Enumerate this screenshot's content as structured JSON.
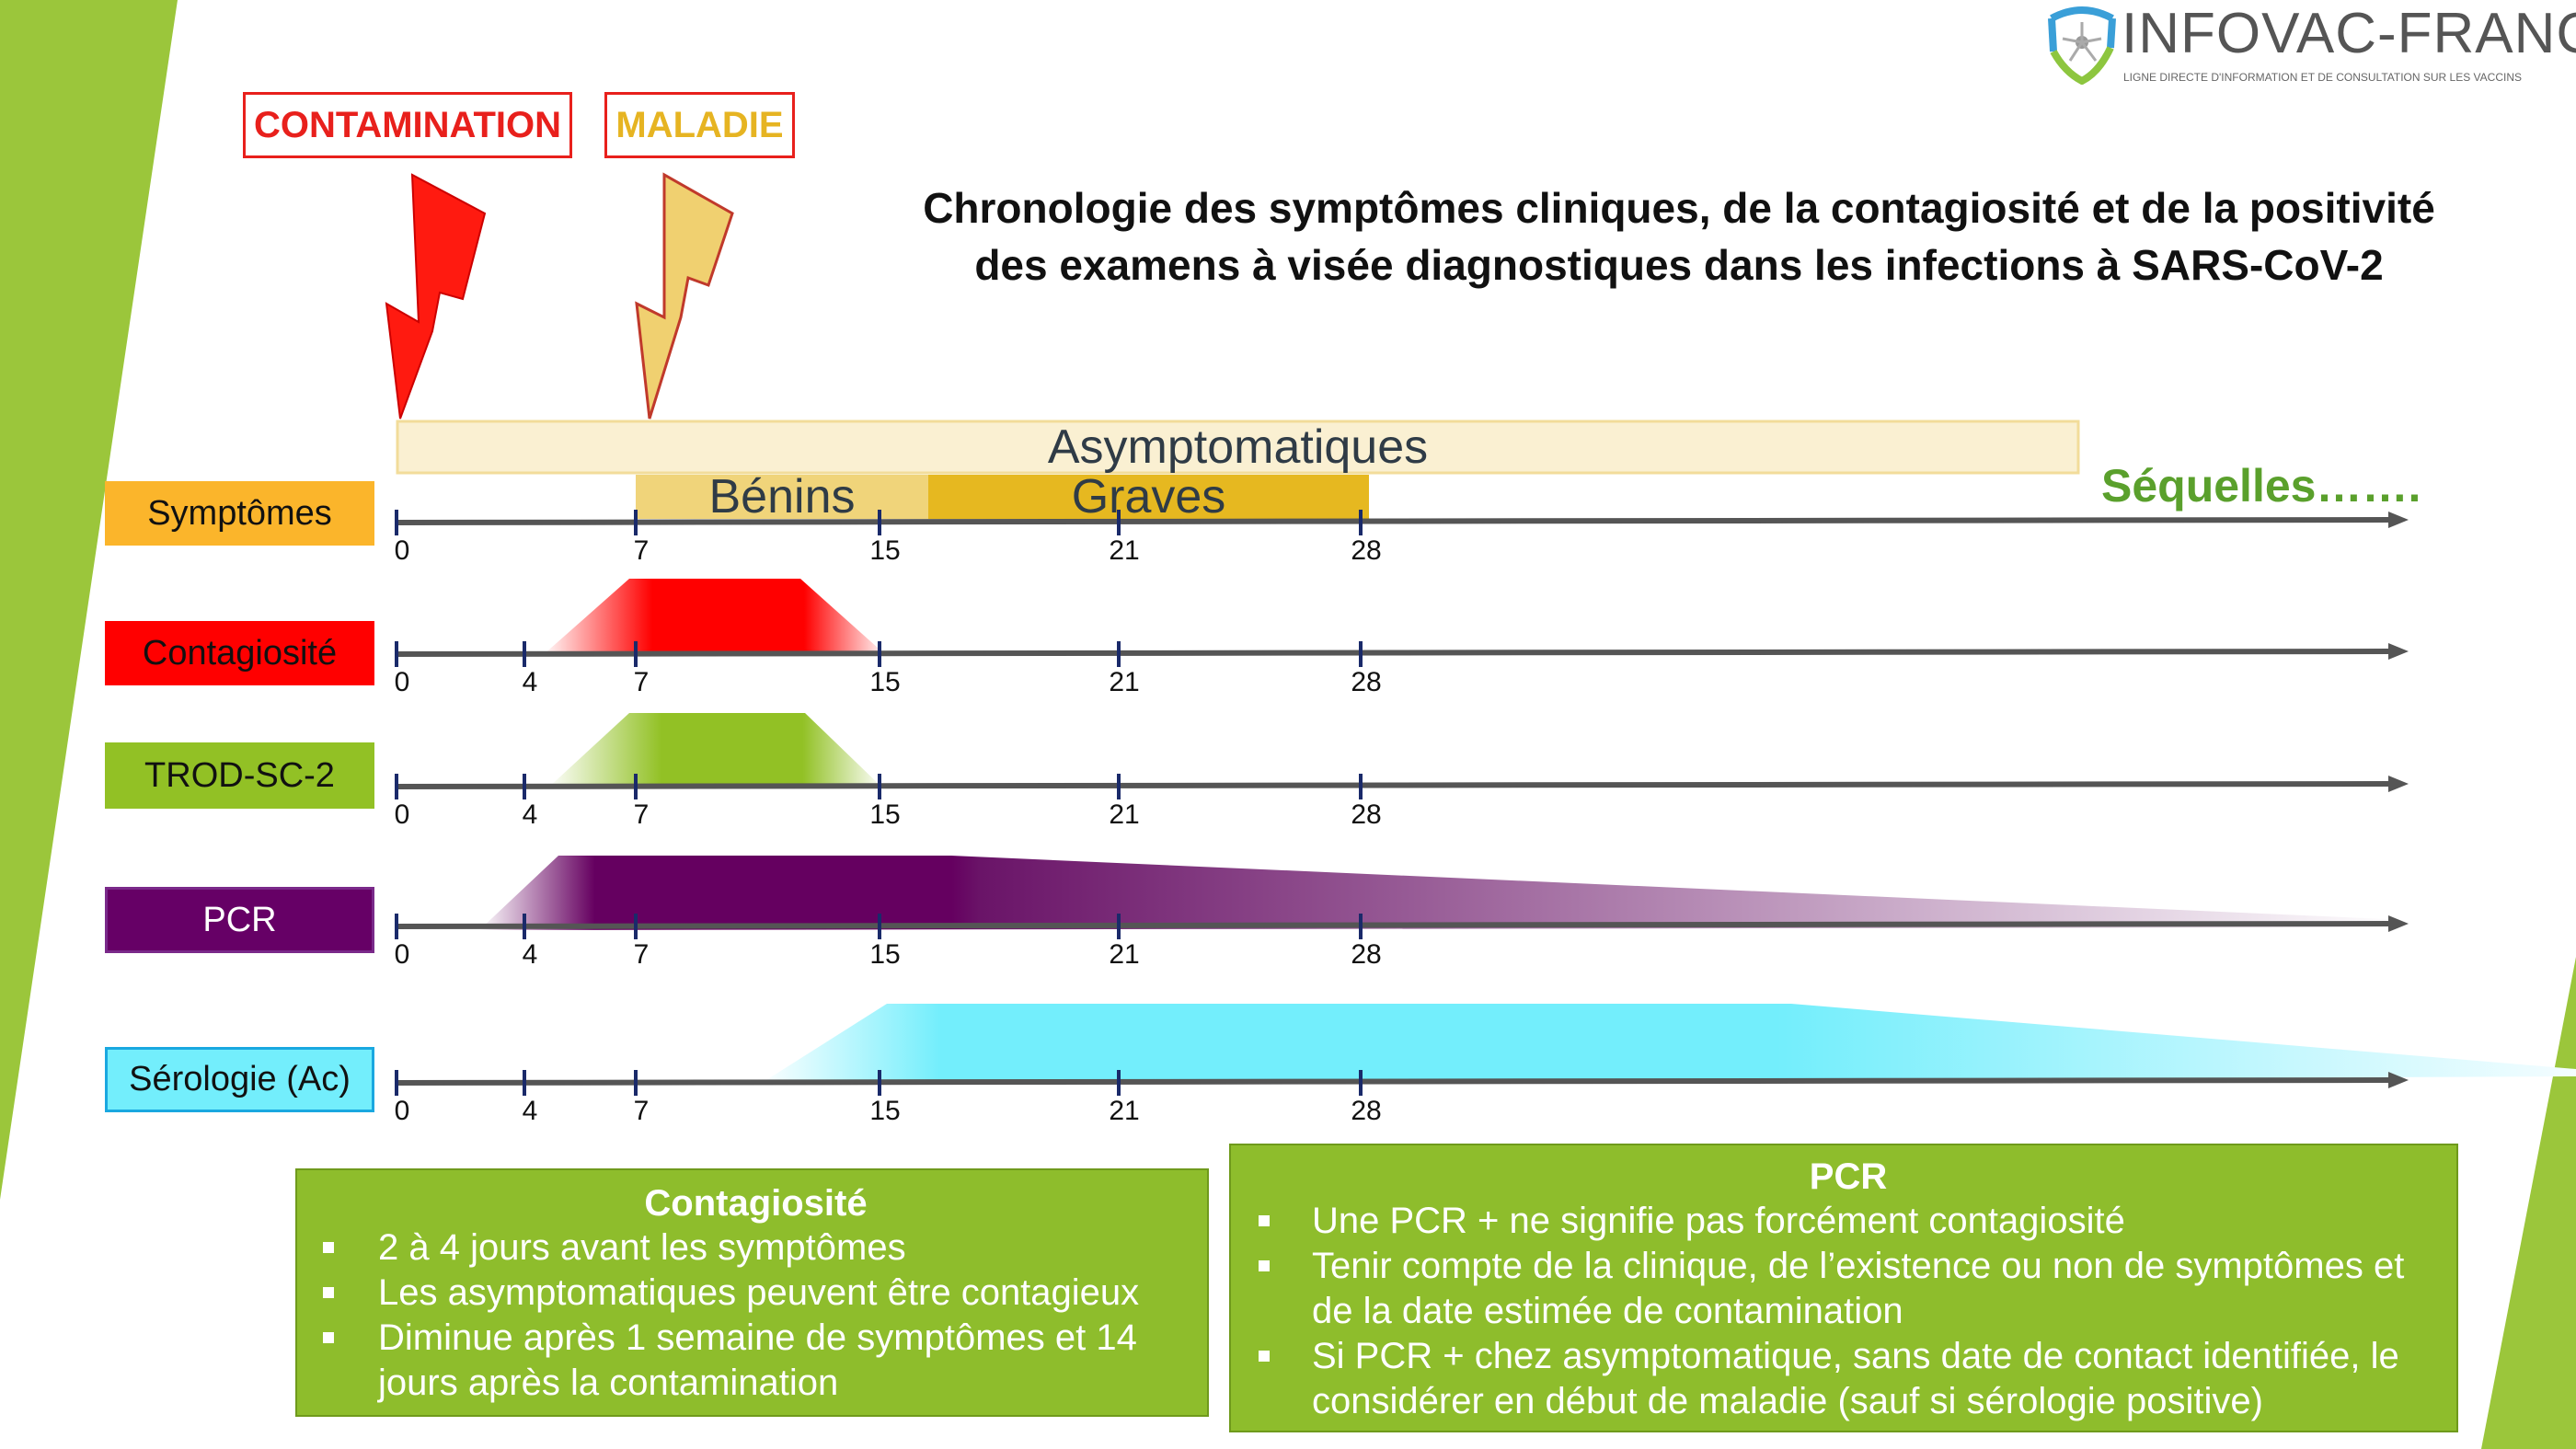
{
  "logo": {
    "name": "INFOVAC-FRANCE",
    "tagline": "LIGNE DIRECTE D'INFORMATION ET DE CONSULTATION SUR LES VACCINS"
  },
  "tags": {
    "contamination": "CONTAMINATION",
    "maladie": "MALADIE"
  },
  "title": {
    "line1": "Chronologie des symptômes cliniques, de la contagiosité et de la positivité",
    "line2": "des examens à visée diagnostiques dans les infections à SARS-CoV-2"
  },
  "symptom_bars": {
    "asymptomatic": "Asymptomatiques",
    "mild": "Bénins",
    "severe": "Graves",
    "sequelae": "Séquelles……."
  },
  "rows": [
    {
      "label": "Symptômes",
      "color": "#fbb52b",
      "text_color": "#111111",
      "ticks": [
        "0",
        "7",
        "15",
        "21",
        "28"
      ]
    },
    {
      "label": "Contagiosité",
      "color": "#ff0000",
      "text_color": "#111111",
      "ticks": [
        "0",
        "4",
        "7",
        "15",
        "21",
        "28"
      ]
    },
    {
      "label": "TROD-SC-2",
      "color": "#92c125",
      "text_color": "#111111",
      "ticks": [
        "0",
        "4",
        "7",
        "15",
        "21",
        "28"
      ]
    },
    {
      "label": "PCR",
      "color": "#660066",
      "text_color": "#ffffff",
      "ticks": [
        "0",
        "4",
        "7",
        "15",
        "21",
        "28"
      ]
    },
    {
      "label": "Sérologie (Ac)",
      "color": "#73eefc",
      "text_color": "#111111",
      "ticks": [
        "0",
        "4",
        "7",
        "15",
        "21",
        "28"
      ]
    }
  ],
  "colors": {
    "accent_green": "#8ebd2c",
    "contamination_red": "#e8201c",
    "maladie_gold": "#e6b422"
  },
  "info_contagiosite": {
    "title": "Contagiosité",
    "bullets": [
      "2 à 4 jours avant les symptômes",
      "Les asymptomatiques peuvent être contagieux",
      "Diminue après 1 semaine de symptômes et 14 jours après la contamination"
    ]
  },
  "info_pcr": {
    "title": "PCR",
    "bullets": [
      "Une PCR + ne signifie pas forcément contagiosité",
      "Tenir compte de la clinique, de l’existence ou non de symptômes et de la date estimée de contamination",
      "Si PCR + chez asymptomatique, sans date de contact identifiée, le considérer en début de maladie (sauf si sérologie positive)"
    ]
  }
}
